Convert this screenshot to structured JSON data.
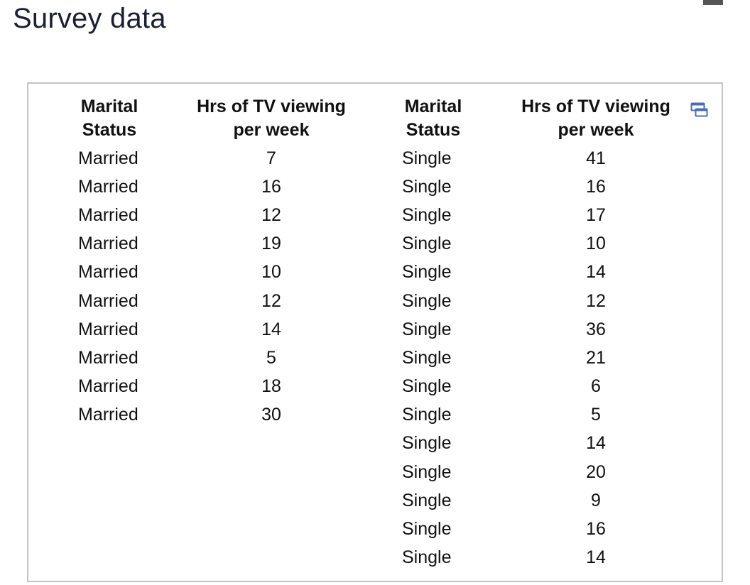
{
  "page": {
    "title": "Survey data"
  },
  "table": {
    "headers": [
      "Marital\nStatus",
      "Hrs of TV viewing\nper week",
      "Marital\nStatus",
      "Hrs of TV viewing\nper week"
    ],
    "married_group": [
      {
        "status": "Married",
        "hours": "7"
      },
      {
        "status": "Married",
        "hours": "16"
      },
      {
        "status": "Married",
        "hours": "12"
      },
      {
        "status": "Married",
        "hours": "19"
      },
      {
        "status": "Married",
        "hours": "10"
      },
      {
        "status": "Married",
        "hours": "12"
      },
      {
        "status": "Married",
        "hours": "14"
      },
      {
        "status": "Married",
        "hours": "5"
      },
      {
        "status": "Married",
        "hours": "18"
      },
      {
        "status": "Married",
        "hours": "30"
      }
    ],
    "single_group": [
      {
        "status": "Single",
        "hours": "41"
      },
      {
        "status": "Single",
        "hours": "16"
      },
      {
        "status": "Single",
        "hours": "17"
      },
      {
        "status": "Single",
        "hours": "10"
      },
      {
        "status": "Single",
        "hours": "14"
      },
      {
        "status": "Single",
        "hours": "12"
      },
      {
        "status": "Single",
        "hours": "36"
      },
      {
        "status": "Single",
        "hours": "21"
      },
      {
        "status": "Single",
        "hours": "6"
      },
      {
        "status": "Single",
        "hours": "5"
      },
      {
        "status": "Single",
        "hours": "14"
      },
      {
        "status": "Single",
        "hours": "20"
      },
      {
        "status": "Single",
        "hours": "9"
      },
      {
        "status": "Single",
        "hours": "16"
      },
      {
        "status": "Single",
        "hours": "14"
      }
    ]
  },
  "icons": {
    "copy": "copy-to-clipboard-icon"
  },
  "colors": {
    "title": "#1a2033",
    "border": "#c4c4c4",
    "icon": "#4a6fb0"
  }
}
